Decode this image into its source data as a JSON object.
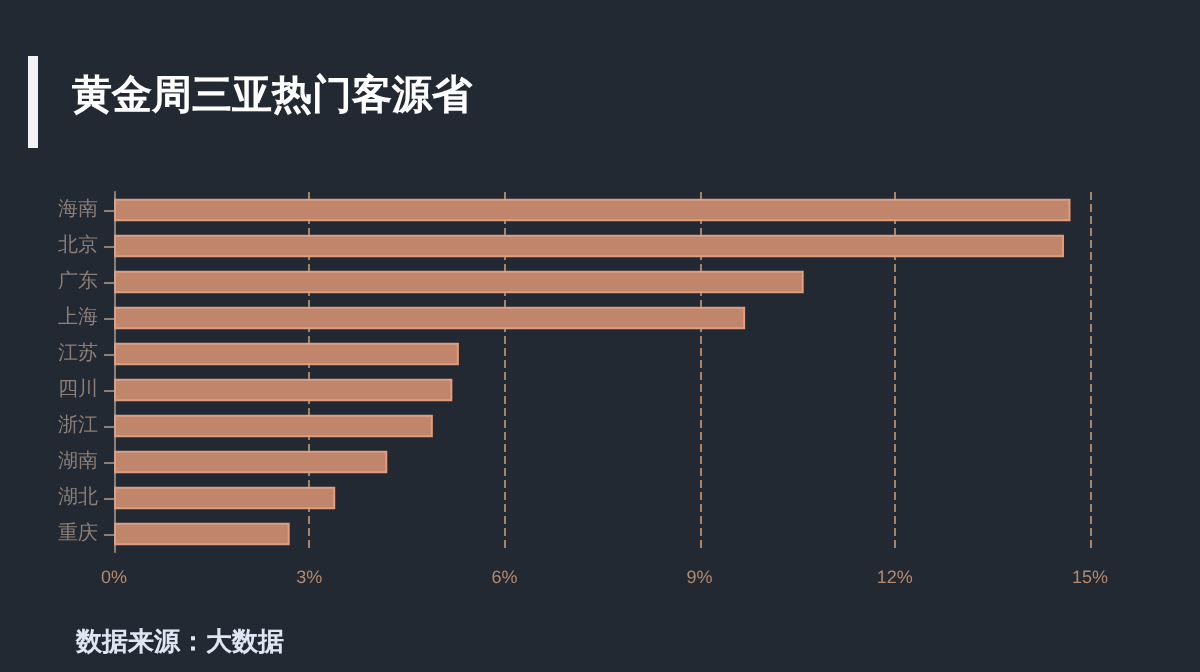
{
  "chart_data": {
    "type": "bar",
    "title": "黄金周三亚热门客源省",
    "orientation": "horizontal",
    "categories": [
      "海南",
      "北京",
      "广东",
      "上海",
      "江苏",
      "四川",
      "浙江",
      "湖南",
      "湖北",
      "重庆"
    ],
    "values": [
      14.7,
      14.6,
      10.6,
      9.7,
      5.3,
      5.2,
      4.9,
      4.2,
      3.4,
      2.7
    ],
    "color": "#c0856a",
    "xlim": [
      0,
      15
    ],
    "xticks": [
      {
        "value": 0,
        "label": "0%"
      },
      {
        "value": 3,
        "label": "3%"
      },
      {
        "value": 6,
        "label": "6%"
      },
      {
        "value": 9,
        "label": "9%"
      },
      {
        "value": 12,
        "label": "12%"
      },
      {
        "value": 15,
        "label": "15%"
      }
    ],
    "grid": "x",
    "annotations": [
      "数据来源：大数据"
    ]
  }
}
